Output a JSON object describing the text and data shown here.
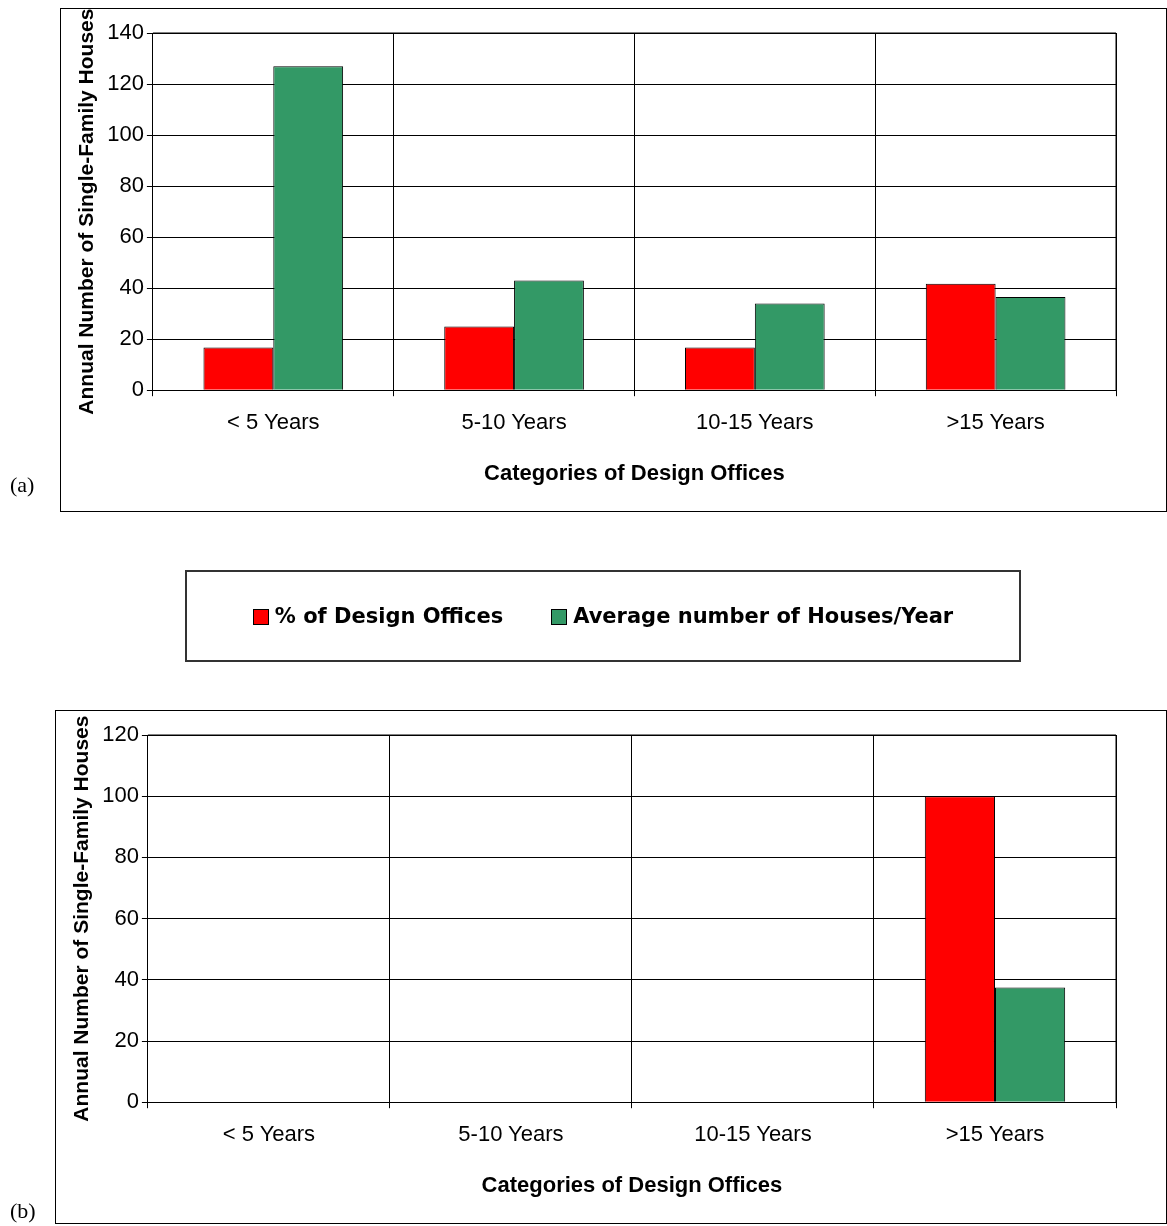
{
  "chart_data": [
    {
      "type": "bar",
      "xlabel": "Categories of Design Offices",
      "ylabel": "Annual Number of Single-Family Houses",
      "categories": [
        "< 5 Years",
        "5-10 Years",
        "10-15 Years",
        ">15 Years"
      ],
      "series": [
        {
          "name": "% of Design Offices",
          "color": "#ff0000",
          "values": [
            16.7,
            25,
            16.7,
            41.7
          ]
        },
        {
          "name": "Average number of Houses/Year",
          "color": "#339966",
          "values": [
            127,
            43,
            34,
            36.5
          ]
        }
      ],
      "ylim": [
        0,
        140
      ],
      "yticks": [
        0,
        20,
        40,
        60,
        80,
        100,
        120,
        140
      ],
      "grid": true,
      "legend": "bottom",
      "annotations": [
        "(a)"
      ]
    },
    {
      "type": "bar",
      "xlabel": "Categories of Design Offices",
      "ylabel": "Annual Number of Single-Family Houses",
      "categories": [
        "< 5 Years",
        "5-10 Years",
        "10-15 Years",
        ">15 Years"
      ],
      "series": [
        {
          "color": "#ff0000",
          "values": [
            null,
            null,
            null,
            100
          ]
        },
        {
          "color": "#339966",
          "values": [
            null,
            null,
            null,
            37.5
          ]
        }
      ],
      "ylim": [
        0,
        120
      ],
      "yticks": [
        0,
        20,
        40,
        60,
        80,
        100,
        120
      ],
      "grid": true,
      "annotations": [
        "(b)"
      ]
    }
  ]
}
